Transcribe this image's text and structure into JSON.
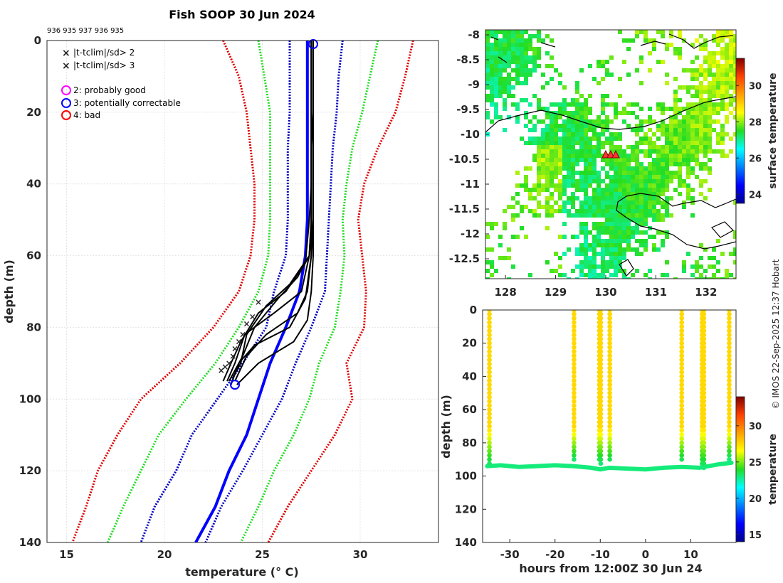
{
  "figure": {
    "title": "Fish SOOP 30 Jun 2024",
    "probe_ids": "936 935 937 936 935",
    "copyright": "© IMOS 22-Sep-2025 12:37 Hobart"
  },
  "colors": {
    "profile": "#000000",
    "climatology_mean": "#0000ff",
    "sd1": "#0000c0",
    "sd2": "#22dd22",
    "sd3": "#dd0000",
    "flag_x_sd2": "#22dd22",
    "flag_x_sd3": "#ee0000",
    "qc_good": "#ff00ff",
    "qc_correctable": "#0000ff",
    "qc_bad": "#ff0000"
  },
  "legend": {
    "items": [
      {
        "marker": "x",
        "color": "#22dd22",
        "label": "|t-tclim|/sd> 2"
      },
      {
        "marker": "x",
        "color": "#ee0000",
        "label": "|t-tclim|/sd> 3"
      },
      {
        "marker": "o",
        "color": "#ff00ff",
        "label": "2: probably good"
      },
      {
        "marker": "o",
        "color": "#0000ff",
        "label": "3: potentially correctable"
      },
      {
        "marker": "o",
        "color": "#ff0000",
        "label": "4: bad"
      }
    ]
  },
  "chart_data": [
    {
      "id": "profile",
      "type": "line",
      "title": "Fish SOOP 30 Jun 2024",
      "xlabel": "temperature (° C)",
      "ylabel": "depth (m)",
      "xlim": [
        14,
        34
      ],
      "ylim": [
        140,
        0
      ],
      "xticks": [
        15,
        20,
        25,
        30
      ],
      "yticks": [
        0,
        20,
        40,
        60,
        80,
        100,
        120,
        140
      ],
      "grid": true,
      "climatology": {
        "depths": [
          0,
          10,
          20,
          30,
          40,
          50,
          60,
          70,
          80,
          90,
          100,
          110,
          120,
          130,
          140
        ],
        "mean": [
          27.3,
          27.3,
          27.3,
          27.3,
          27.3,
          27.3,
          27.2,
          26.9,
          26.2,
          25.4,
          24.8,
          24.2,
          23.3,
          22.6,
          21.6
        ],
        "minus_3sd": [
          23.0,
          23.8,
          24.2,
          24.4,
          24.6,
          24.6,
          24.4,
          23.8,
          22.5,
          20.8,
          18.8,
          17.6,
          16.6,
          16.0,
          15.3
        ],
        "plus_3sd": [
          32.7,
          32.3,
          31.8,
          30.9,
          30.2,
          29.9,
          30.1,
          30.3,
          30.2,
          29.3,
          29.6,
          28.7,
          27.5,
          26.3,
          25.3
        ],
        "minus_2sd": [
          24.8,
          25.1,
          25.4,
          25.4,
          25.4,
          25.4,
          25.3,
          24.8,
          23.8,
          22.6,
          21.1,
          19.7,
          18.8,
          17.9,
          17.1
        ],
        "plus_2sd": [
          30.9,
          30.5,
          30.1,
          29.6,
          29.3,
          29.1,
          29.2,
          29.0,
          28.7,
          27.9,
          27.4,
          26.6,
          25.6,
          24.8,
          23.9
        ],
        "minus_1sd": [
          26.4,
          26.4,
          26.4,
          26.3,
          26.3,
          26.3,
          26.2,
          25.6,
          25.2,
          24.0,
          22.7,
          21.4,
          20.6,
          19.5,
          18.8
        ],
        "plus_1sd": [
          29.1,
          28.9,
          28.8,
          28.6,
          28.5,
          28.4,
          28.3,
          28.2,
          27.5,
          26.7,
          26.0,
          25.0,
          24.0,
          22.9,
          22.1
        ]
      },
      "profiles": [
        {
          "temps": [
            27.6,
            27.6,
            27.6,
            27.6,
            27.6,
            27.6,
            27.6,
            27.5,
            27.3,
            26.6,
            24.8,
            23.7
          ],
          "depths": [
            0,
            10,
            20,
            30,
            40,
            50,
            60,
            70,
            78,
            84,
            90,
            96
          ]
        },
        {
          "temps": [
            27.6,
            27.6,
            27.6,
            27.6,
            27.6,
            27.6,
            27.4,
            26.8,
            25.8,
            24.6,
            24.0,
            23.3
          ],
          "depths": [
            0,
            10,
            20,
            30,
            40,
            50,
            60,
            66,
            72,
            80,
            88,
            95
          ]
        },
        {
          "temps": [
            27.5,
            27.5,
            27.5,
            27.5,
            27.5,
            27.5,
            27.4,
            26.4,
            25.2,
            24.2,
            23.9,
            23.5
          ],
          "depths": [
            0,
            10,
            20,
            30,
            40,
            50,
            60,
            68,
            74,
            82,
            90,
            94
          ]
        },
        {
          "temps": [
            27.6,
            27.6,
            27.6,
            27.5,
            27.5,
            27.5,
            27.4,
            27.0,
            25.6,
            24.1,
            23.6,
            23.2
          ],
          "depths": [
            0,
            10,
            20,
            30,
            40,
            50,
            60,
            70,
            76,
            82,
            90,
            95
          ]
        },
        {
          "temps": [
            27.5,
            27.5,
            27.5,
            27.5,
            27.5,
            27.4,
            27.2,
            26.2,
            24.8,
            23.9,
            23.4,
            23.0
          ],
          "depths": [
            0,
            10,
            20,
            30,
            40,
            50,
            62,
            70,
            76,
            84,
            90,
            95
          ]
        },
        {
          "temps": [
            27.6,
            27.6,
            27.6,
            27.6,
            27.6,
            27.6,
            27.5,
            27.2,
            26.4,
            24.6,
            23.8,
            23.4
          ],
          "depths": [
            0,
            10,
            20,
            30,
            40,
            50,
            60,
            72,
            80,
            85,
            90,
            96
          ]
        },
        {
          "temps": [
            27.5,
            27.5,
            27.5,
            27.5,
            27.5,
            27.5,
            27.5,
            27.3,
            26.8,
            25.2,
            24.2,
            23.6
          ],
          "depths": [
            0,
            10,
            20,
            30,
            40,
            50,
            60,
            70,
            76,
            82,
            88,
            95
          ]
        }
      ],
      "flag_markers_sd2": [
        {
          "t": 24.8,
          "d": 73
        },
        {
          "t": 24.5,
          "d": 77
        },
        {
          "t": 24.2,
          "d": 79
        },
        {
          "t": 24.0,
          "d": 82
        },
        {
          "t": 23.8,
          "d": 84
        },
        {
          "t": 23.6,
          "d": 86
        },
        {
          "t": 23.5,
          "d": 88
        },
        {
          "t": 23.3,
          "d": 90
        },
        {
          "t": 23.1,
          "d": 91
        },
        {
          "t": 22.9,
          "d": 92
        }
      ],
      "qc_circles": [
        {
          "t": 27.6,
          "d": 1,
          "flag": 3
        },
        {
          "t": 23.6,
          "d": 96,
          "flag": 3
        }
      ]
    },
    {
      "id": "map",
      "type": "heatmap",
      "xlim": [
        127.6,
        132.6
      ],
      "ylim": [
        -12.9,
        -7.9
      ],
      "xticks": [
        128,
        129,
        130,
        131,
        132
      ],
      "yticks": [
        -8,
        -8.5,
        -9,
        -9.5,
        -10,
        -10.5,
        -11,
        -11.5,
        -12,
        -12.5
      ],
      "colorbar": {
        "label": "surface temperature",
        "range": [
          23.5,
          31.5
        ],
        "ticks": [
          24,
          26,
          28,
          30
        ]
      },
      "drop_locations": [
        {
          "lon": 130.0,
          "lat": -10.4
        },
        {
          "lon": 130.1,
          "lat": -10.4
        },
        {
          "lon": 130.2,
          "lat": -10.4
        }
      ],
      "sst_typical": 27.5
    },
    {
      "id": "section",
      "type": "scatter",
      "xlabel": "hours from 12:00Z 30 Jun 24",
      "ylabel": "depth (m)",
      "xlim": [
        -36,
        20
      ],
      "ylim": [
        140,
        0
      ],
      "xticks": [
        -30,
        -20,
        -10,
        0,
        10
      ],
      "yticks": [
        0,
        20,
        40,
        60,
        80,
        100,
        120,
        140
      ],
      "colorbar": {
        "label": "temperature",
        "range": [
          14,
          34
        ],
        "ticks": [
          15,
          20,
          25,
          30
        ]
      },
      "bottom_track": {
        "hours": [
          -35,
          -32,
          -28,
          -24,
          -20,
          -16,
          -12,
          -10,
          -8,
          -4,
          0,
          4,
          8,
          12,
          16,
          19
        ],
        "depths": [
          94,
          93.5,
          94.5,
          94,
          93.5,
          94,
          95,
          96,
          95,
          95.5,
          96,
          95,
          94.5,
          95,
          93,
          92
        ]
      },
      "casts": [
        {
          "hour": -34.5,
          "max_depth": 94
        },
        {
          "hour": -15.8,
          "max_depth": 91
        },
        {
          "hour": -10.2,
          "max_depth": 92
        },
        {
          "hour": -9.9,
          "max_depth": 93
        },
        {
          "hour": -7.9,
          "max_depth": 92
        },
        {
          "hour": 8.0,
          "max_depth": 92
        },
        {
          "hour": 12.5,
          "max_depth": 94
        },
        {
          "hour": 12.9,
          "max_depth": 95
        },
        {
          "hour": 18.5,
          "max_depth": 90
        }
      ],
      "surface_temp": 27.5,
      "bottom_temp": 23.0
    }
  ]
}
